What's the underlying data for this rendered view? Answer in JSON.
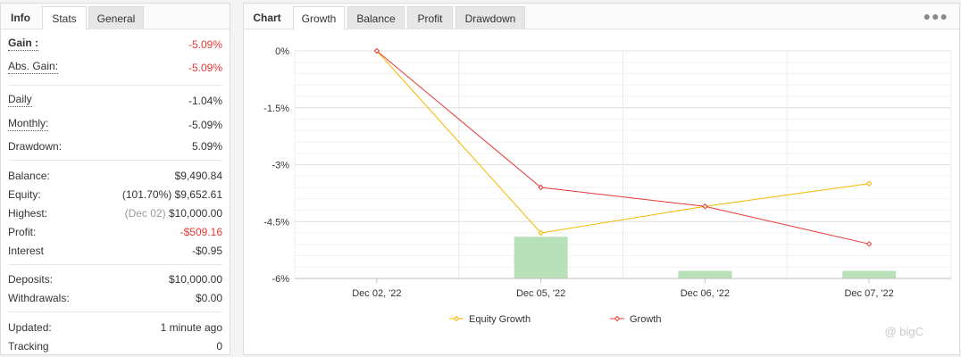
{
  "left_tabs": [
    {
      "label": "Info"
    },
    {
      "label": "Stats"
    },
    {
      "label": "General"
    }
  ],
  "stats": {
    "gain": {
      "label": "Gain :",
      "value": "-5.09%"
    },
    "abs_gain": {
      "label": "Abs. Gain:",
      "value": "-5.09%"
    },
    "daily": {
      "label": "Daily",
      "value": "-1.04%"
    },
    "monthly": {
      "label": "Monthly:",
      "value": "-5.09%"
    },
    "drawdown": {
      "label": "Drawdown:",
      "value": "5.09%"
    },
    "balance": {
      "label": "Balance:",
      "value": "$9,490.84"
    },
    "equity": {
      "label": "Equity:",
      "pct": "(101.70%)",
      "value": "$9,652.61"
    },
    "highest": {
      "label": "Highest:",
      "date": "(Dec 02)",
      "value": "$10,000.00"
    },
    "profit": {
      "label": "Profit:",
      "value": "-$509.16"
    },
    "interest": {
      "label": "Interest",
      "value": "-$0.95"
    },
    "deposits": {
      "label": "Deposits:",
      "value": "$10,000.00"
    },
    "withdrawals": {
      "label": "Withdrawals:",
      "value": "$0.00"
    },
    "updated": {
      "label": "Updated:",
      "value": "1 minute ago"
    },
    "tracking": {
      "label": "Tracking",
      "value": "0"
    }
  },
  "right_tabs": [
    {
      "label": "Chart"
    },
    {
      "label": "Growth"
    },
    {
      "label": "Balance"
    },
    {
      "label": "Profit"
    },
    {
      "label": "Drawdown"
    }
  ],
  "menu_icon": "more-dots-icon",
  "watermark": "@ bigC",
  "colors": {
    "equity_growth": "#f5b800",
    "growth": "#e53935",
    "bars": "#b7e0b8",
    "negative": "#e53935"
  },
  "chart_data": {
    "type": "line",
    "categories": [
      "Dec 02, '22",
      "Dec 05, '22",
      "Dec 06, '22",
      "Dec 07, '22"
    ],
    "series": [
      {
        "name": "Equity Growth",
        "values": [
          0,
          -4.8,
          -4.1,
          -3.5
        ]
      },
      {
        "name": "Growth",
        "values": [
          0,
          -3.6,
          -4.1,
          -5.09
        ]
      }
    ],
    "bars": {
      "values": [
        0,
        -4.9,
        -5.8,
        -5.8
      ]
    },
    "yticks": [
      "0%",
      "-1.5%",
      "-3%",
      "-4.5%",
      "-6%"
    ],
    "ylim": [
      -6,
      0
    ],
    "grid": true,
    "legend": "bottom"
  }
}
